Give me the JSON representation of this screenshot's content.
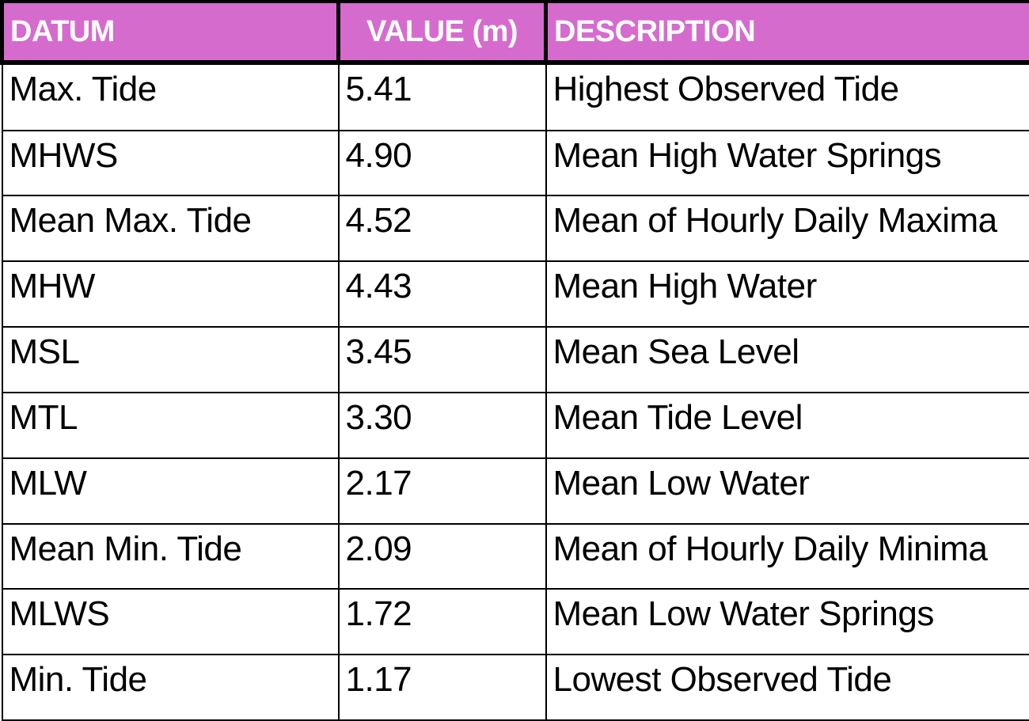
{
  "colors": {
    "header_background": "#d66bce",
    "header_text": "#ffffff",
    "border": "#000000",
    "body_text": "#000000",
    "body_background": "#ffffff"
  },
  "chart_data": {
    "type": "table",
    "columns": [
      "DATUM",
      "VALUE (m)",
      "DESCRIPTION"
    ],
    "units": "m",
    "rows": [
      [
        "Max. Tide",
        "5.41",
        "Highest Observed Tide"
      ],
      [
        "MHWS",
        "4.90",
        "Mean High Water Springs"
      ],
      [
        "Mean Max. Tide",
        "4.52",
        "Mean of Hourly Daily Maxima"
      ],
      [
        "MHW",
        "4.43",
        "Mean High Water"
      ],
      [
        "MSL",
        "3.45",
        "Mean Sea Level"
      ],
      [
        "MTL",
        "3.30",
        "Mean Tide Level"
      ],
      [
        "MLW",
        "2.17",
        "Mean Low Water"
      ],
      [
        "Mean Min. Tide",
        "2.09",
        "Mean of Hourly Daily Minima"
      ],
      [
        "MLWS",
        "1.72",
        "Mean Low Water Springs"
      ],
      [
        "Min. Tide",
        "1.17",
        "Lowest Observed Tide"
      ]
    ]
  }
}
